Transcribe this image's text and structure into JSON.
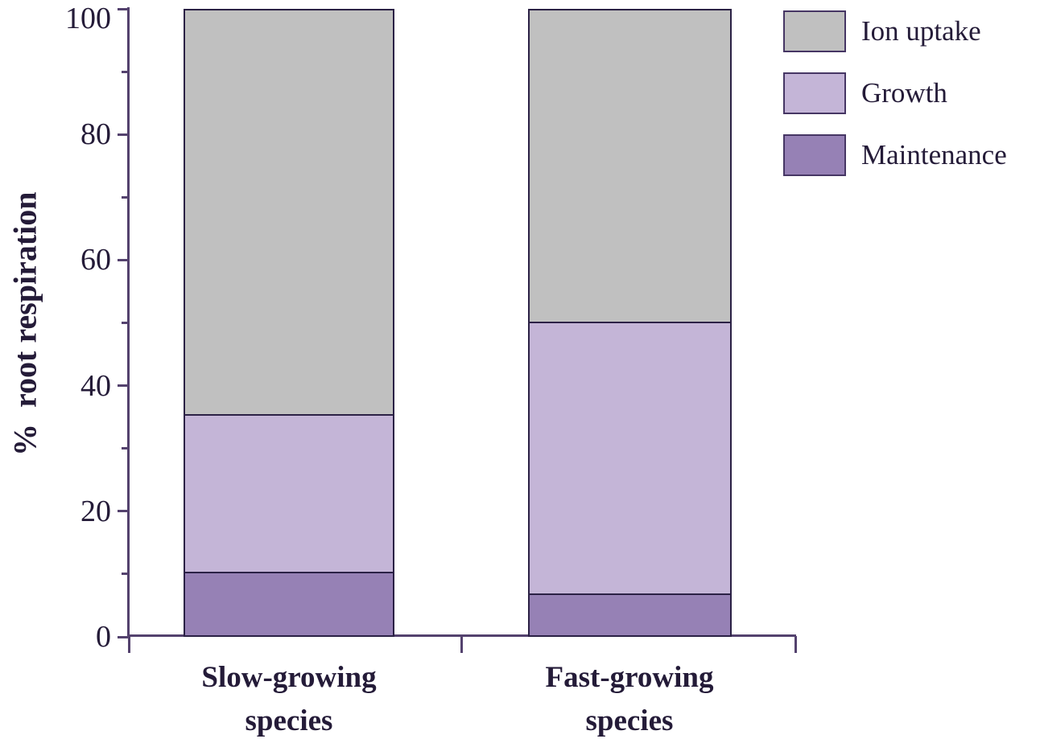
{
  "chart_data": {
    "type": "bar",
    "stacked": true,
    "title": "",
    "xlabel": "",
    "ylabel": "%  root respiration",
    "ylim": [
      0,
      100
    ],
    "y_major_ticks": [
      0,
      20,
      40,
      60,
      80,
      100
    ],
    "y_minor_ticks": [
      10,
      30,
      50,
      70,
      90
    ],
    "grid": false,
    "categories": [
      "Slow-growing\nspecies",
      "Fast-growing\nspecies"
    ],
    "series": [
      {
        "name": "Maintenance",
        "color": "#9681b5",
        "values": [
          10,
          6.5
        ]
      },
      {
        "name": "Growth",
        "color": "#c4b5d7",
        "values": [
          25,
          43.5
        ]
      },
      {
        "name": "Ion uptake",
        "color": "#c0c0c0",
        "values": [
          65,
          50
        ]
      }
    ],
    "legend": {
      "position": "top-right",
      "entries": [
        "Ion uptake",
        "Growth",
        "Maintenance"
      ]
    }
  },
  "colors": {
    "axis": "#54426e",
    "bar_border": "#2b2145",
    "swatch_border": "#463664",
    "text": "#241b38",
    "background": "#ffffff"
  }
}
